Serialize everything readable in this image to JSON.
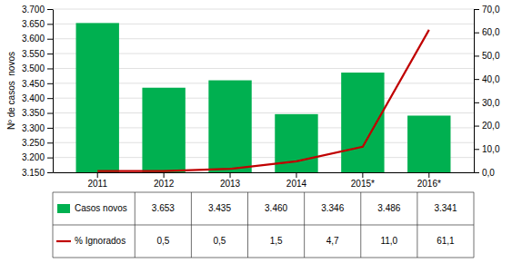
{
  "chart_data": {
    "type": "bar",
    "categories": [
      "2011",
      "2012",
      "2013",
      "2014",
      "2015*",
      "2016*"
    ],
    "series": [
      {
        "name": "Casos novos",
        "type": "bar",
        "color": "#00b050",
        "values": [
          3653,
          3435,
          3460,
          3346,
          3486,
          3341
        ],
        "value_labels": [
          "3.653",
          "3.435",
          "3.460",
          "3.346",
          "3.486",
          "3.341"
        ]
      },
      {
        "name": "% Ignorados",
        "type": "line",
        "color": "#c00000",
        "axis": "y2",
        "values": [
          0.5,
          0.5,
          1.5,
          4.7,
          11.0,
          61.1
        ],
        "value_labels": [
          "0,5",
          "0,5",
          "1,5",
          "4,7",
          "11,0",
          "61,1"
        ]
      }
    ],
    "ylabel": "Nº de casos  novos",
    "ylim": [
      3150,
      3700
    ],
    "yticks": [
      {
        "value": 3150,
        "label": "3.150"
      },
      {
        "value": 3200,
        "label": "3.200"
      },
      {
        "value": 3250,
        "label": "3.250"
      },
      {
        "value": 3300,
        "label": "3.300"
      },
      {
        "value": 3350,
        "label": "3.350"
      },
      {
        "value": 3400,
        "label": "3.400"
      },
      {
        "value": 3450,
        "label": "3.450"
      },
      {
        "value": 3500,
        "label": "3.500"
      },
      {
        "value": 3550,
        "label": "3.550"
      },
      {
        "value": 3600,
        "label": "3.600"
      },
      {
        "value": 3650,
        "label": "3.650"
      },
      {
        "value": 3700,
        "label": "3.700"
      }
    ],
    "y2lim": [
      0,
      70
    ],
    "y2ticks": [
      {
        "value": 0.0,
        "label": "0,0"
      },
      {
        "value": 10.0,
        "label": "10,0"
      },
      {
        "value": 20.0,
        "label": "20,0"
      },
      {
        "value": 30.0,
        "label": "30,0"
      },
      {
        "value": 40.0,
        "label": "40,0"
      },
      {
        "value": 50.0,
        "label": "50,0"
      },
      {
        "value": 60.0,
        "label": "60,0"
      },
      {
        "value": 70.0,
        "label": "70,0"
      }
    ],
    "grid": true,
    "legend": "bottom",
    "data_labels": true
  }
}
